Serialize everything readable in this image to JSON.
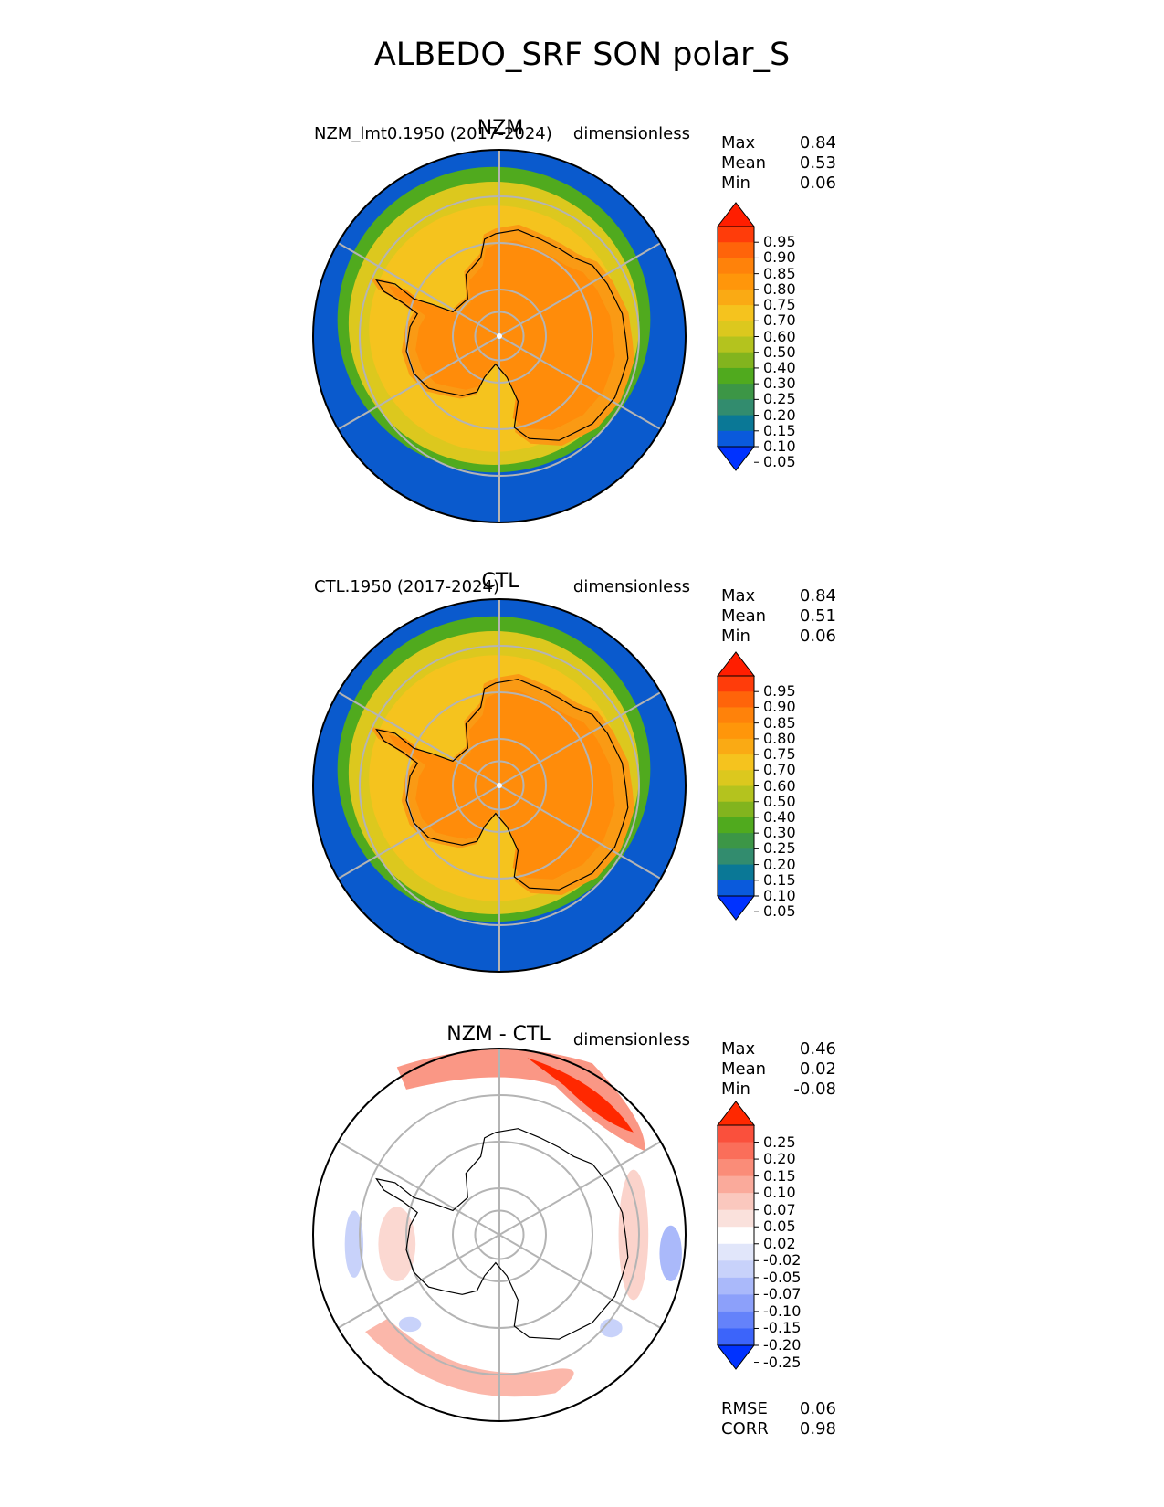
{
  "title": "ALBEDO_SRF SON polar_S",
  "panels": [
    {
      "center_title": "NZM",
      "left_title": "NZM_lmt0.1950 (2017-2024)",
      "units": "dimensionless",
      "stats": [
        {
          "label": "Max",
          "value": "0.84"
        },
        {
          "label": "Mean",
          "value": "0.53"
        },
        {
          "label": "Min",
          "value": "0.06"
        }
      ],
      "colorbar_ticks": [
        "0.95",
        "0.90",
        "0.85",
        "0.80",
        "0.75",
        "0.70",
        "0.60",
        "0.50",
        "0.40",
        "0.30",
        "0.25",
        "0.20",
        "0.15",
        "0.10",
        "0.05"
      ]
    },
    {
      "center_title": "CTL",
      "left_title": "CTL.1950 (2017-2024)",
      "units": "dimensionless",
      "stats": [
        {
          "label": "Max",
          "value": "0.84"
        },
        {
          "label": "Mean",
          "value": "0.51"
        },
        {
          "label": "Min",
          "value": "0.06"
        }
      ],
      "colorbar_ticks": [
        "0.95",
        "0.90",
        "0.85",
        "0.80",
        "0.75",
        "0.70",
        "0.60",
        "0.50",
        "0.40",
        "0.30",
        "0.25",
        "0.20",
        "0.15",
        "0.10",
        "0.05"
      ]
    },
    {
      "center_title": "NZM - CTL",
      "left_title": "",
      "units": "dimensionless",
      "stats": [
        {
          "label": "Max",
          "value": "0.46"
        },
        {
          "label": "Mean",
          "value": "0.02"
        },
        {
          "label": "Min",
          "value": "-0.08"
        }
      ],
      "colorbar_ticks": [
        "0.25",
        "0.20",
        "0.15",
        "0.10",
        "0.07",
        "0.05",
        "0.02",
        "-0.02",
        "-0.05",
        "-0.07",
        "-0.10",
        "-0.15",
        "-0.20",
        "-0.25"
      ],
      "extra_stats": [
        {
          "label": "RMSE",
          "value": "0.06"
        },
        {
          "label": "CORR",
          "value": "0.98"
        }
      ]
    }
  ],
  "colors": {
    "field_levels": [
      "#0032ff",
      "#0a5adc",
      "#0a7896",
      "#328c6e",
      "#3c9646",
      "#50aa1e",
      "#82b41e",
      "#b4c31e",
      "#dcc81e",
      "#f5c31e",
      "#faaa14",
      "#ff960a",
      "#ff820a",
      "#ff640a",
      "#ff3c0a",
      "#ff1e00"
    ],
    "diff_levels": [
      "#0032ff",
      "#3c64fa",
      "#6482fa",
      "#8ca0fa",
      "#aab9fa",
      "#c8d2fa",
      "#e1e6fa",
      "#ffffff",
      "#fae1dc",
      "#fac8be",
      "#faaa9b",
      "#fa8c78",
      "#fa6e5a",
      "#fa503c",
      "#ff2800"
    ],
    "ocean": "#0a5acd",
    "ice_edge": "#50aa1e",
    "sea_ice": "#dcc81e",
    "shelf": "#f5c31e",
    "interior": "#ff8c0a"
  },
  "chart_data": [
    {
      "type": "heatmap",
      "title": "NZM",
      "projection": "south-polar-stereographic",
      "variable": "ALBEDO_SRF",
      "season": "SON",
      "max": 0.84,
      "mean": 0.53,
      "min": 0.06,
      "levels": [
        0.05,
        0.1,
        0.15,
        0.2,
        0.25,
        0.3,
        0.4,
        0.5,
        0.6,
        0.7,
        0.75,
        0.8,
        0.85,
        0.9,
        0.95
      ]
    },
    {
      "type": "heatmap",
      "title": "CTL",
      "projection": "south-polar-stereographic",
      "variable": "ALBEDO_SRF",
      "season": "SON",
      "max": 0.84,
      "mean": 0.51,
      "min": 0.06,
      "levels": [
        0.05,
        0.1,
        0.15,
        0.2,
        0.25,
        0.3,
        0.4,
        0.5,
        0.6,
        0.7,
        0.75,
        0.8,
        0.85,
        0.9,
        0.95
      ]
    },
    {
      "type": "heatmap",
      "title": "NZM - CTL",
      "projection": "south-polar-stereographic",
      "variable": "ALBEDO_SRF difference",
      "season": "SON",
      "max": 0.46,
      "mean": 0.02,
      "min": -0.08,
      "rmse": 0.06,
      "corr": 0.98,
      "levels": [
        -0.25,
        -0.2,
        -0.15,
        -0.1,
        -0.07,
        -0.05,
        -0.02,
        0.02,
        0.05,
        0.07,
        0.1,
        0.15,
        0.2,
        0.25
      ]
    }
  ]
}
